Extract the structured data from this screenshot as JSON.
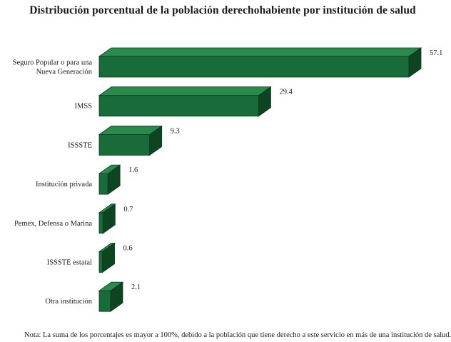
{
  "chart_data": {
    "type": "bar",
    "orientation": "horizontal",
    "style": "3d",
    "title": "Distribución porcentual de la población derechohabiente por institución de salud",
    "categories": [
      [
        "Seguro Popular o para una",
        "Nueva Generación"
      ],
      [
        "IMSS"
      ],
      [
        "ISSSTE"
      ],
      [
        "Institución privada"
      ],
      [
        "Pemex, Defensa o Marina"
      ],
      [
        "ISSSTE estatal"
      ],
      [
        "Otra institución"
      ]
    ],
    "values": [
      57.1,
      29.4,
      9.3,
      1.6,
      0.7,
      0.6,
      2.1
    ],
    "value_labels": [
      "57.1",
      "29.4",
      "9.3",
      "1.6",
      "0.7",
      "0.6",
      "2.1"
    ],
    "xlim": [
      0,
      57.1
    ],
    "grid": false,
    "legend": "none",
    "colors": {
      "front": "#1a6b3a",
      "top": "#2a8a4c",
      "side": "#0d4422",
      "outline": "#0b3a1e"
    }
  },
  "note": "Nota:  La suma de los porcentajes es mayor  a 100%, debido a la población que tiene derecho a este servicio en más de una institución de salud."
}
